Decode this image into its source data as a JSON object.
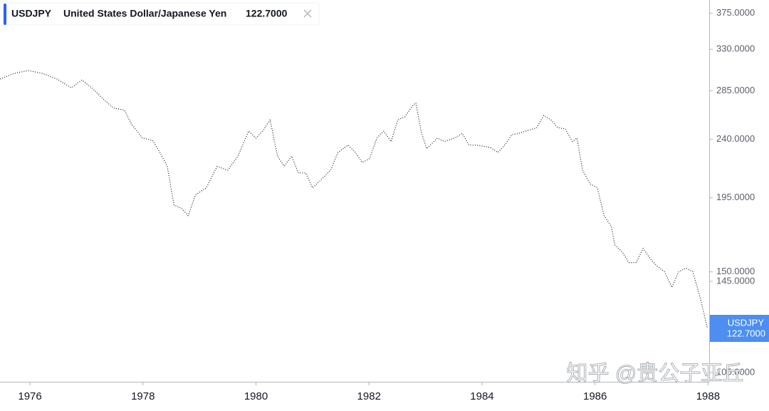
{
  "chart_data": {
    "type": "line",
    "title": "USDJPY",
    "subtitle": "United States Dollar/Japanese Yen",
    "last_price_label": "122.7000",
    "watermark": "知乎 @贵公子亚丘",
    "log_scale": true,
    "grid": false,
    "x": [
      1975.47,
      1975.72,
      1975.97,
      1976.22,
      1976.48,
      1976.73,
      1976.92,
      1977.11,
      1977.29,
      1977.48,
      1977.67,
      1977.8,
      1977.99,
      1978.17,
      1978.3,
      1978.43,
      1978.55,
      1978.68,
      1978.8,
      1978.93,
      1979.12,
      1979.31,
      1979.5,
      1979.68,
      1979.87,
      1980.0,
      1980.12,
      1980.25,
      1980.38,
      1980.5,
      1980.63,
      1980.75,
      1980.88,
      1981.0,
      1981.13,
      1981.32,
      1981.45,
      1981.63,
      1981.76,
      1981.88,
      1982.01,
      1982.14,
      1982.26,
      1982.39,
      1982.51,
      1982.64,
      1982.77,
      1982.83,
      1982.92,
      1983.02,
      1983.21,
      1983.33,
      1983.52,
      1983.65,
      1983.77,
      1983.9,
      1984.15,
      1984.28,
      1984.4,
      1984.53,
      1984.65,
      1984.84,
      1984.97,
      1985.09,
      1985.22,
      1985.34,
      1985.47,
      1985.6,
      1985.68,
      1985.78,
      1985.91,
      1986.04,
      1986.16,
      1986.29,
      1986.35,
      1986.48,
      1986.6,
      1986.73,
      1986.85,
      1986.98,
      1987.1,
      1987.23,
      1987.36,
      1987.48,
      1987.61,
      1987.73,
      1987.86,
      1987.99
    ],
    "series": [
      {
        "name": "USDJPY",
        "color": "#131722",
        "values": [
          297,
          303,
          306,
          303,
          297,
          288,
          296,
          287,
          277,
          268,
          266,
          253,
          241,
          239,
          229,
          218,
          190,
          188,
          183,
          197,
          202,
          218,
          215,
          226,
          247,
          241,
          247,
          257,
          226,
          218,
          226,
          213,
          213,
          202,
          207,
          215,
          229,
          235,
          229,
          221,
          224,
          241,
          247,
          238,
          257,
          260,
          270,
          273,
          247,
          232,
          241,
          238,
          241,
          245,
          235,
          235,
          233,
          229,
          235,
          244,
          245,
          248,
          250,
          261,
          257,
          250,
          249,
          238,
          241,
          215,
          205,
          202,
          183,
          176,
          165,
          161,
          155,
          155,
          163,
          157,
          153,
          150,
          142,
          150,
          152,
          150,
          137,
          122.7
        ]
      }
    ],
    "xlim": [
      1975.47,
      1988.02
    ],
    "xticks": [
      1976,
      1978,
      1980,
      1982,
      1984,
      1986,
      1988
    ],
    "ylim": [
      101.6,
      393
    ],
    "yticks": [
      {
        "value": 375,
        "label": "375.0000"
      },
      {
        "value": 330,
        "label": "330.0000"
      },
      {
        "value": 285,
        "label": "285.0000"
      },
      {
        "value": 240,
        "label": "240.0000"
      },
      {
        "value": 195,
        "label": "195.0000"
      },
      {
        "value": 150,
        "label": "150.0000"
      },
      {
        "value": 145,
        "label": "145.0000"
      },
      {
        "value": 105,
        "label": "105.0000"
      }
    ]
  }
}
